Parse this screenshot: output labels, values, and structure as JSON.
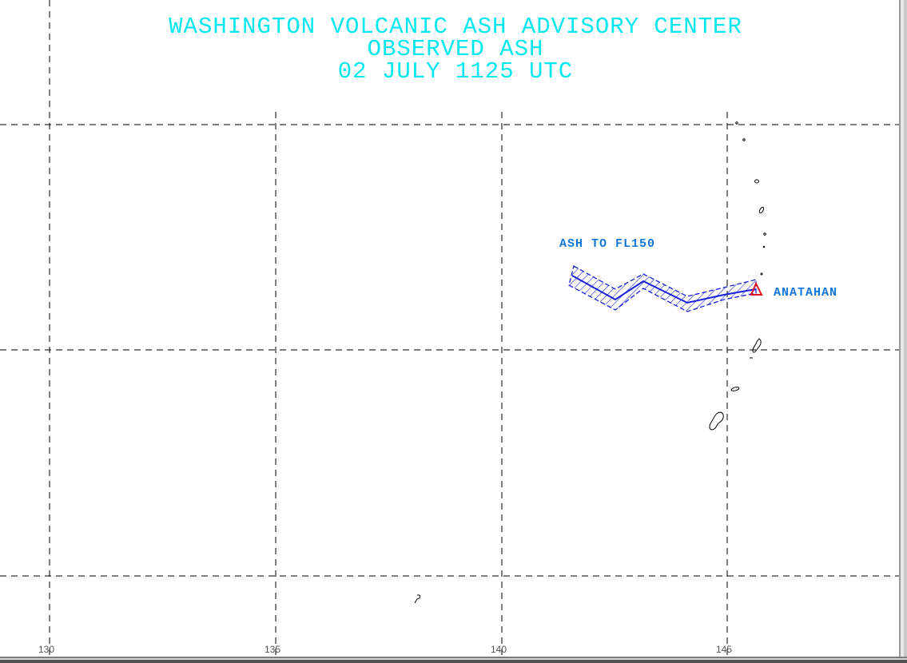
{
  "title": {
    "line1": "WASHINGTON VOLCANIC ASH ADVISORY CENTER",
    "line2": "OBSERVED ASH",
    "line3": "02 JULY 1125 UTC"
  },
  "labels": {
    "ash_layer": "ASH TO FL150",
    "volcano": "ANATAHAN"
  },
  "grid": {
    "longitudes": [
      "130",
      "135",
      "140",
      "145"
    ]
  },
  "colors": {
    "title": "#00e8ef",
    "ash_outline": "#1a20d8",
    "label": "#1477d8",
    "volcano_marker": "#e0141e",
    "grid": "#000000"
  }
}
